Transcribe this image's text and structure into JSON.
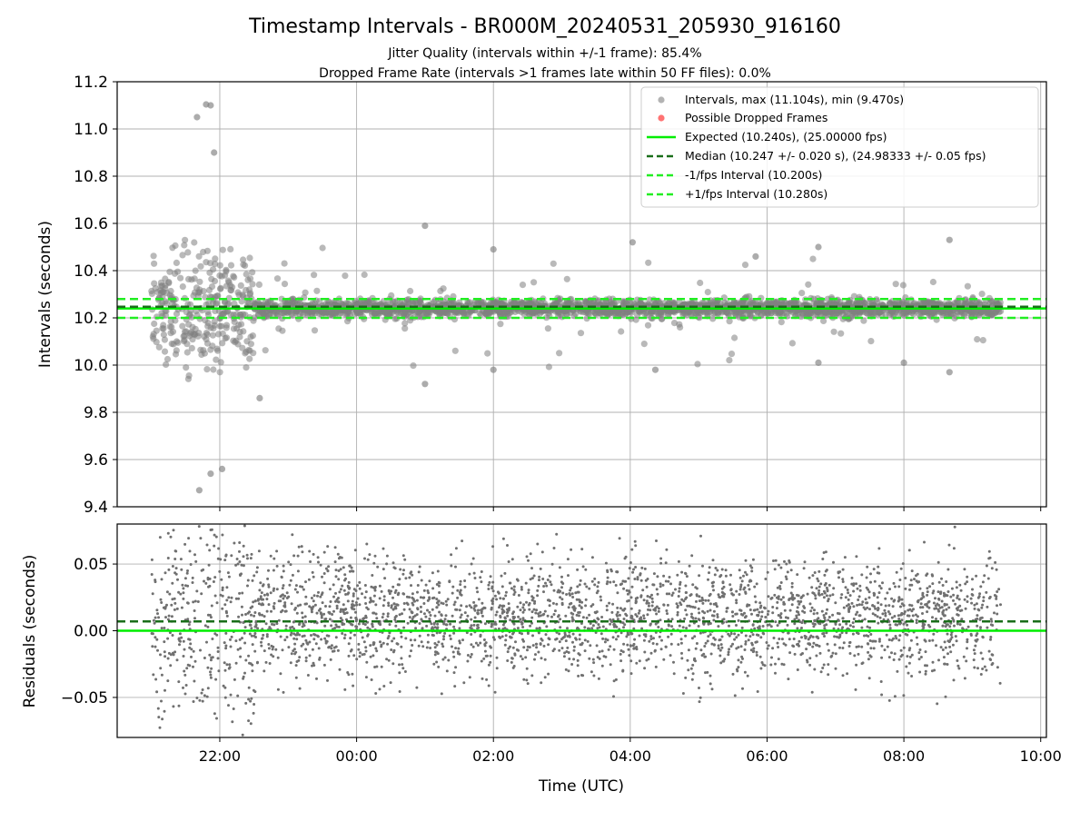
{
  "figure": {
    "title": "Timestamp Intervals - BR000M_20240531_205930_916160",
    "subtitle1": "Jitter Quality (intervals within +/-1 frame): 85.4%",
    "subtitle2": "Dropped Frame Rate (intervals >1 frames late within 50 FF files): 0.0%"
  },
  "chart_data": [
    {
      "type": "scatter",
      "panel": "intervals",
      "ylabel": "Intervals (seconds)",
      "xlabel": "",
      "xlim": [
        "20:30",
        "10:05"
      ],
      "ylim": [
        9.4,
        11.2
      ],
      "yticks": [
        "9.4",
        "9.6",
        "9.8",
        "10.0",
        "10.2",
        "10.4",
        "10.6",
        "10.8",
        "11.0",
        "11.2"
      ],
      "grid": true,
      "legend_position": "top-right",
      "x_range_of_data": [
        "21:00",
        "09:25"
      ],
      "series": [
        {
          "name": "Intervals, max (11.104s), min (9.470s)",
          "marker": "circle",
          "color": "#808080",
          "baseline": 10.24,
          "sample_points": [
            {
              "x": "21:48",
              "y": 11.104
            },
            {
              "x": "21:40",
              "y": 11.05
            },
            {
              "x": "21:52",
              "y": 11.1
            },
            {
              "x": "21:55",
              "y": 10.9
            },
            {
              "x": "21:42",
              "y": 9.47
            },
            {
              "x": "21:52",
              "y": 9.54
            },
            {
              "x": "22:02",
              "y": 9.56
            },
            {
              "x": "22:35",
              "y": 9.86
            },
            {
              "x": "01:00",
              "y": 10.59
            },
            {
              "x": "01:00",
              "y": 9.92
            },
            {
              "x": "02:00",
              "y": 10.49
            },
            {
              "x": "02:00",
              "y": 9.98
            },
            {
              "x": "04:02",
              "y": 10.52
            },
            {
              "x": "04:22",
              "y": 9.98
            },
            {
              "x": "05:50",
              "y": 10.46
            },
            {
              "x": "06:45",
              "y": 10.5
            },
            {
              "x": "06:45",
              "y": 10.01
            },
            {
              "x": "08:00",
              "y": 10.01
            },
            {
              "x": "08:40",
              "y": 10.53
            },
            {
              "x": "08:40",
              "y": 9.97
            }
          ]
        },
        {
          "name": "Possible Dropped Frames",
          "marker": "circle",
          "color": "#ff5a5a",
          "points": []
        }
      ],
      "reference_lines": [
        {
          "name": "Expected (10.240s), (25.00000 fps)",
          "y": 10.24,
          "color": "#00ee00",
          "style": "solid"
        },
        {
          "name": "Median (10.247 +/- 0.020 s), (24.98333 +/- 0.05 fps)",
          "y": 10.247,
          "color": "#1a6e1a",
          "style": "dashed"
        },
        {
          "name": "-1/fps Interval (10.200s)",
          "y": 10.2,
          "color": "#22ee22",
          "style": "dashed"
        },
        {
          "name": "+1/fps Interval (10.280s)",
          "y": 10.28,
          "color": "#22ee22",
          "style": "dashed"
        }
      ]
    },
    {
      "type": "scatter",
      "panel": "residuals",
      "ylabel": "Residuals (seconds)",
      "xlabel": "Time (UTC)",
      "xlim": [
        "20:30",
        "10:05"
      ],
      "ylim": [
        -0.08,
        0.08
      ],
      "yticks": [
        "−0.05",
        "0.00",
        "0.05"
      ],
      "ytick_values": [
        -0.05,
        0.0,
        0.05
      ],
      "xticks": [
        "22:00",
        "00:00",
        "02:00",
        "04:00",
        "06:00",
        "08:00",
        "10:00"
      ],
      "grid": true,
      "series": [
        {
          "name": "Residuals",
          "marker": "dot",
          "color": "#707070",
          "center": 0.01,
          "spread": 0.08
        }
      ],
      "reference_lines": [
        {
          "name": "Expected",
          "y": 0.0,
          "color": "#00ee00",
          "style": "solid"
        },
        {
          "name": "Median",
          "y": 0.007,
          "color": "#1a6e1a",
          "style": "dashed"
        }
      ]
    }
  ]
}
